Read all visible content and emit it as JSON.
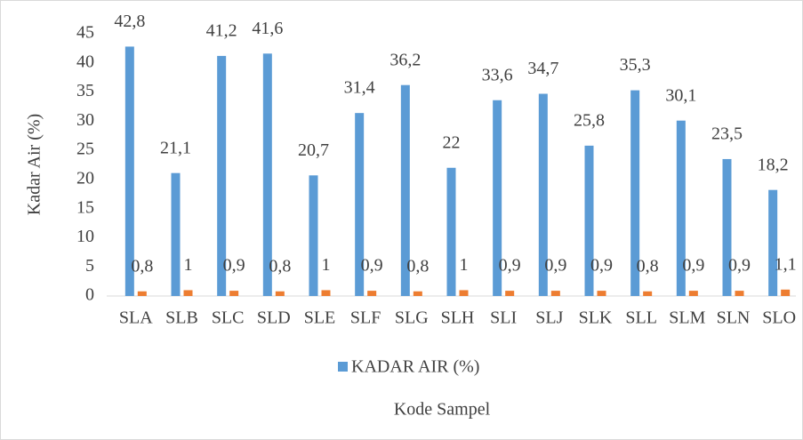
{
  "chart_data": {
    "type": "bar",
    "x_label": "Kode Sampel",
    "y_label": "Kadar Air (%)",
    "categories": [
      "SLA",
      "SLB",
      "SLC",
      "SLD",
      "SLE",
      "SLF",
      "SLG",
      "SLH",
      "SLI",
      "SLJ",
      "SLK",
      "SLL",
      "SLM",
      "SLN",
      "SLO"
    ],
    "series": [
      {
        "name": "KADAR AIR (%)",
        "color": "#5b9bd5",
        "values": [
          42.8,
          21.1,
          41.2,
          41.6,
          20.7,
          31.4,
          36.2,
          22,
          33.6,
          34.7,
          25.8,
          35.3,
          30.1,
          23.5,
          18.2
        ],
        "value_labels": [
          "42,8",
          "21,1",
          "41,2",
          "41,6",
          "20,7",
          "31,4",
          "36,2",
          "22",
          "33,6",
          "34,7",
          "25,8",
          "35,3",
          "30,1",
          "23,5",
          "18,2"
        ]
      },
      {
        "color": "#ed7d31",
        "values": [
          0.8,
          1,
          0.9,
          0.8,
          1,
          0.9,
          0.8,
          1,
          0.9,
          0.9,
          0.9,
          0.8,
          0.9,
          0.9,
          1.1
        ],
        "value_labels": [
          "0,8",
          "1",
          "0,9",
          "0,8",
          "1",
          "0,9",
          "0,8",
          "1",
          "0,9",
          "0,9",
          "0,9",
          "0,8",
          "0,9",
          "0,9",
          "1,1"
        ]
      }
    ],
    "ylim": [
      0,
      45
    ],
    "yticks": [
      0,
      5,
      10,
      15,
      20,
      25,
      30,
      35,
      40,
      45
    ],
    "grid": false,
    "legend": "bottom"
  }
}
